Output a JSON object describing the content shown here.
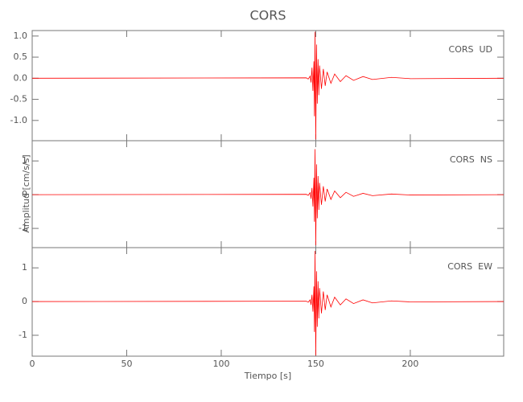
{
  "chart_data": [
    {
      "type": "line",
      "title": "CORS",
      "annotation": "CORS  UD",
      "x": [
        0,
        145,
        146,
        147,
        147.5,
        148,
        148.5,
        149,
        149.3,
        149.6,
        150,
        150.4,
        150.8,
        151.2,
        151.6,
        152,
        153,
        154,
        155,
        156,
        158,
        160,
        163,
        166,
        170,
        175,
        180,
        190,
        200,
        249.4
      ],
      "series": [
        {
          "color": "#ff0000",
          "values": [
            0,
            0.01,
            -0.02,
            0.05,
            -0.1,
            0.25,
            -0.3,
            0.4,
            -0.9,
            1.1,
            -1.45,
            0.8,
            -0.6,
            0.45,
            -0.4,
            0.3,
            -0.25,
            0.22,
            -0.18,
            0.15,
            -0.12,
            0.1,
            -0.08,
            0.06,
            -0.05,
            0.04,
            -0.03,
            0.02,
            -0.01,
            0
          ]
        }
      ],
      "xlim": [
        0,
        249.4
      ],
      "ylim": [
        -1.48,
        1.13
      ],
      "yticks": [
        {
          "value": 1,
          "label": "1.0"
        },
        0.5,
        {
          "value": 0,
          "label": "0.0"
        },
        -0.5,
        {
          "value": -1,
          "label": "-1.0"
        }
      ]
    },
    {
      "type": "line",
      "annotation": "CORS  NS",
      "y_label": "Amplitud [cm/s/s]",
      "x": [
        0,
        145,
        146,
        147,
        147.5,
        148,
        148.5,
        149,
        149.3,
        149.6,
        150,
        150.4,
        150.8,
        151.2,
        151.6,
        152,
        153,
        154,
        155,
        156,
        158,
        160,
        163,
        166,
        170,
        175,
        180,
        190,
        200,
        249.4
      ],
      "series": [
        {
          "color": "#ff0000",
          "values": [
            0,
            0.01,
            -0.02,
            0.06,
            -0.12,
            0.2,
            -0.35,
            0.5,
            -0.8,
            1.35,
            -1.5,
            0.9,
            -0.7,
            0.55,
            -0.45,
            0.35,
            -0.3,
            0.25,
            -0.2,
            0.17,
            -0.14,
            0.11,
            -0.09,
            0.07,
            -0.05,
            0.04,
            -0.03,
            0.02,
            -0.01,
            0
          ]
        }
      ],
      "xlim": [
        0,
        249.4
      ],
      "ylim": [
        -1.57,
        1.6
      ],
      "yticks": [
        1,
        0,
        -1
      ]
    },
    {
      "type": "line",
      "annotation": "CORS  EW",
      "x_label": "Tiempo [s]",
      "x": [
        0,
        145,
        146,
        147,
        147.5,
        148,
        148.5,
        149,
        149.3,
        149.6,
        150,
        150.4,
        150.8,
        151.2,
        151.6,
        152,
        153,
        154,
        155,
        156,
        158,
        160,
        163,
        166,
        170,
        175,
        180,
        190,
        200,
        249.4
      ],
      "series": [
        {
          "color": "#ff0000",
          "values": [
            0,
            0.01,
            -0.02,
            0.05,
            -0.1,
            0.2,
            -0.3,
            0.45,
            -0.9,
            1.5,
            -1.6,
            0.9,
            -0.75,
            0.6,
            -0.5,
            0.4,
            -0.35,
            0.3,
            -0.25,
            0.2,
            -0.16,
            0.13,
            -0.1,
            0.08,
            -0.06,
            0.05,
            -0.04,
            0.02,
            -0.01,
            0
          ]
        }
      ],
      "xlim": [
        0,
        249.4
      ],
      "ylim": [
        -1.62,
        1.6
      ],
      "yticks": [
        1,
        0,
        -1
      ],
      "xticks": [
        0,
        50,
        100,
        150,
        200
      ]
    }
  ]
}
